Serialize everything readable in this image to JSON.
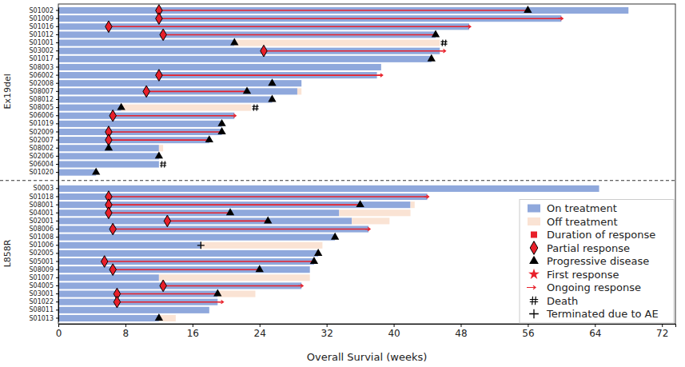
{
  "chart_data": {
    "type": "swimmer",
    "orientation": "horizontal",
    "stacked": true,
    "legend": "lower right",
    "xlabel": "Overall Survial (weeks)",
    "xlim": [
      0,
      73.6
    ],
    "xticks": [
      0,
      8,
      16,
      24,
      32,
      40,
      48,
      56,
      64,
      72
    ],
    "categories": [
      "S01002",
      "S01009",
      "S01016",
      "S01012",
      "S01001",
      "S03002",
      "S01017",
      "S08003",
      "S06002",
      "S02008",
      "S08007",
      "S08012",
      "S08005",
      "S06006",
      "S01019",
      "S02009",
      "S02007",
      "S08002",
      "S02006",
      "S06004",
      "S01020",
      "S0003",
      "S01018",
      "S08001",
      "S04001",
      "S02001",
      "S08006",
      "S01008",
      "S01006",
      "S02005",
      "S05001",
      "S08009",
      "S01007",
      "S04005",
      "S03001",
      "S01022",
      "S08011",
      "S01013"
    ],
    "groups": [
      "Ex19del",
      "Ex19del",
      "Ex19del",
      "Ex19del",
      "Ex19del",
      "Ex19del",
      "Ex19del",
      "Ex19del",
      "Ex19del",
      "Ex19del",
      "Ex19del",
      "Ex19del",
      "Ex19del",
      "Ex19del",
      "Ex19del",
      "Ex19del",
      "Ex19del",
      "Ex19del",
      "Ex19del",
      "Ex19del",
      "Ex19del",
      "L858R",
      "L858R",
      "L858R",
      "L858R",
      "L858R",
      "L858R",
      "L858R",
      "L858R",
      "L858R",
      "L858R",
      "L858R",
      "L858R",
      "L858R",
      "L858R",
      "L858R",
      "L858R",
      "L858R"
    ],
    "series": [
      {
        "name": "On treatment",
        "type": "bar",
        "color": "#8fa8dc",
        "values": [
          68,
          60,
          49,
          45,
          21,
          45.5,
          44.5,
          38.5,
          38,
          29,
          28.5,
          25.5,
          7.5,
          21,
          19.5,
          19.5,
          18,
          12,
          12,
          12,
          4.5,
          64.5,
          44,
          42,
          33.5,
          35,
          37,
          33,
          17,
          31,
          30.5,
          30,
          12,
          29,
          19,
          19,
          18,
          12
        ]
      },
      {
        "name": "Off treatment",
        "type": "bar",
        "color": "#fae3d4",
        "values": [
          null,
          null,
          null,
          null,
          24.5,
          null,
          null,
          null,
          null,
          null,
          0.5,
          null,
          15.5,
          null,
          null,
          null,
          null,
          0.5,
          null,
          null,
          null,
          null,
          null,
          0.5,
          8.5,
          4.5,
          null,
          null,
          14.5,
          null,
          null,
          null,
          18,
          null,
          4.5,
          null,
          null,
          2
        ]
      },
      {
        "name": "Duration of response",
        "type": "line",
        "color": "#e8202a",
        "values": [
          44,
          48,
          43,
          32.5,
          null,
          21.5,
          null,
          null,
          26.5,
          null,
          12,
          null,
          null,
          14.5,
          null,
          13.5,
          12,
          null,
          null,
          null,
          null,
          null,
          38,
          30,
          14.5,
          12,
          30.5,
          null,
          null,
          null,
          25,
          17.5,
          null,
          16.5,
          12,
          12.5,
          null,
          null
        ]
      },
      {
        "name": "Partial response",
        "type": "scatter",
        "marker": "diamond",
        "color": "#e8202a",
        "values": [
          12,
          12,
          6,
          12.5,
          null,
          24.5,
          null,
          null,
          12,
          null,
          10.5,
          null,
          null,
          6.5,
          null,
          6,
          6,
          null,
          null,
          null,
          null,
          null,
          6,
          6,
          6,
          13,
          6.5,
          null,
          null,
          null,
          5.5,
          6.5,
          null,
          12.5,
          7,
          7,
          null,
          null
        ]
      },
      {
        "name": "Progressive disease",
        "type": "scatter",
        "marker": "triangle",
        "color": "#000000",
        "values": [
          56,
          null,
          null,
          45,
          21,
          null,
          44.5,
          null,
          null,
          25.5,
          22.5,
          25.5,
          7.5,
          null,
          19.5,
          19.5,
          18,
          6,
          12,
          null,
          4.5,
          null,
          null,
          36,
          20.5,
          25,
          null,
          33,
          null,
          31,
          30.5,
          24,
          null,
          null,
          19,
          null,
          null,
          12
        ]
      },
      {
        "name": "First response",
        "type": "scatter",
        "marker": "star",
        "color": "#e8202a",
        "values": [
          12,
          12,
          6,
          12.5,
          null,
          24.5,
          null,
          null,
          12,
          null,
          10.5,
          null,
          null,
          6.5,
          null,
          6,
          6,
          null,
          null,
          null,
          null,
          null,
          6,
          6,
          6,
          13,
          6.5,
          null,
          null,
          null,
          5.5,
          6.5,
          null,
          12.5,
          7,
          7,
          null,
          null
        ]
      },
      {
        "name": "Ongoing response",
        "type": "scatter",
        "marker": "arrow",
        "color": "#e8202a",
        "values": [
          null,
          60,
          49,
          null,
          null,
          46,
          null,
          null,
          38.5,
          null,
          null,
          null,
          null,
          21,
          null,
          null,
          null,
          null,
          null,
          null,
          null,
          null,
          44,
          null,
          null,
          null,
          37,
          null,
          null,
          null,
          null,
          null,
          null,
          29,
          null,
          19.5,
          null,
          null
        ]
      },
      {
        "name": "Death",
        "type": "scatter",
        "marker": "hash",
        "color": "#000000",
        "values": [
          null,
          null,
          null,
          null,
          46,
          null,
          null,
          null,
          null,
          null,
          null,
          null,
          23.5,
          null,
          null,
          null,
          null,
          null,
          null,
          12.5,
          null,
          null,
          null,
          null,
          null,
          null,
          null,
          null,
          null,
          null,
          null,
          null,
          null,
          null,
          null,
          null,
          null,
          null
        ]
      },
      {
        "name": "Terminated due to AE",
        "type": "scatter",
        "marker": "plus",
        "color": "#000000",
        "values": [
          null,
          null,
          null,
          null,
          null,
          null,
          null,
          null,
          null,
          null,
          null,
          null,
          null,
          null,
          null,
          null,
          null,
          null,
          null,
          null,
          null,
          null,
          null,
          null,
          null,
          null,
          null,
          null,
          17,
          null,
          null,
          null,
          null,
          null,
          null,
          null,
          null,
          null
        ]
      }
    ]
  }
}
